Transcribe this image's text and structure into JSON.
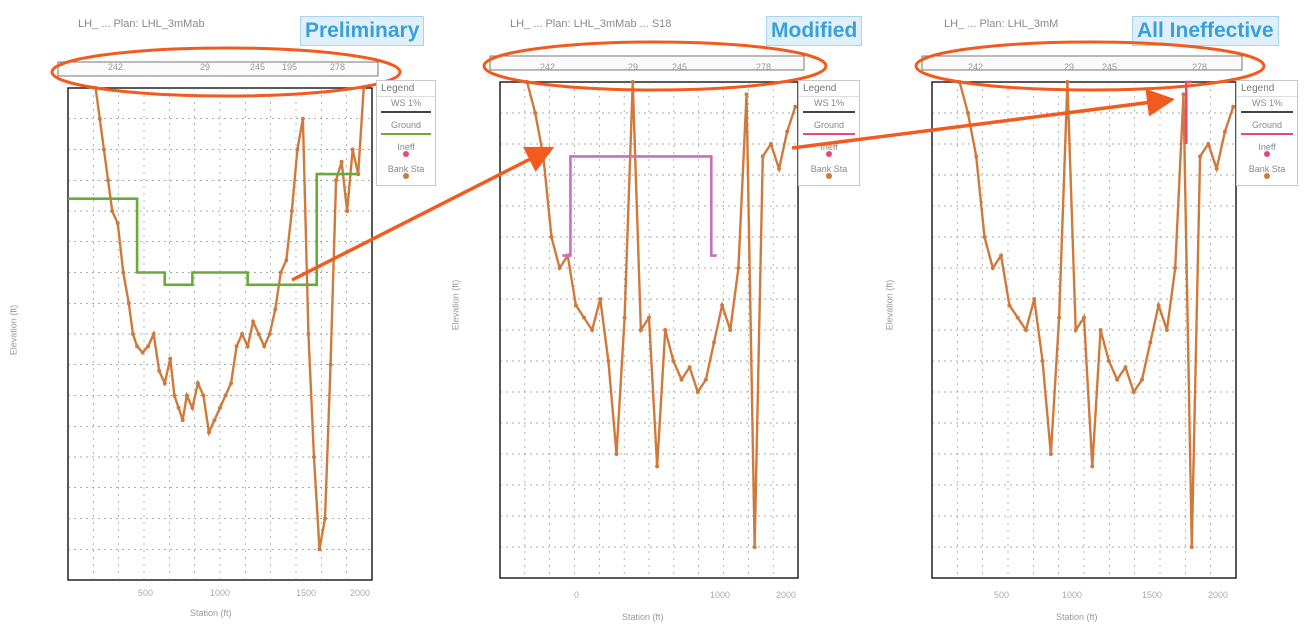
{
  "colors": {
    "ground": "#cf7a3c",
    "ws_prelim": "#6aaa3a",
    "ws_modified": "#c86fc0",
    "ineffective": "#e8467c",
    "annotation": "#f25a1e",
    "tag_text": "#3aa0dc"
  },
  "panels": [
    {
      "tag": "Preliminary",
      "title": "LH_ ...  Plan: LHL_3mMab",
      "reach_labels": [
        "242",
        "29",
        "245",
        "195",
        "278"
      ],
      "legend": {
        "title": "Legend",
        "items": [
          "WS 1%",
          "Ground",
          "Ineff",
          "Bank Sta"
        ]
      },
      "xlabel": "Station (ft)",
      "ylabel": "Elevation (ft)",
      "x_ticks": [
        "500",
        "1000",
        "1500",
        "2000"
      ]
    },
    {
      "tag": "Modified",
      "title": "LH_ ...  Plan: LHL_3mMab ... S18",
      "reach_labels": [
        "242",
        "29",
        "245",
        "278"
      ],
      "legend": {
        "title": "Legend",
        "items": [
          "WS 1%",
          "Ground",
          "Ineff",
          "Bank Sta"
        ]
      },
      "xlabel": "Station (ft)",
      "ylabel": "Elevation (ft)",
      "x_ticks": [
        "0",
        "1000",
        "2000"
      ]
    },
    {
      "tag": "All Ineffective",
      "title": "LH_ ...  Plan: LHL_3mM",
      "reach_labels": [
        "242",
        "29",
        "245",
        "278"
      ],
      "legend": {
        "title": "Legend",
        "items": [
          "WS 1%",
          "Ground",
          "Ineff",
          "Bank Sta"
        ]
      },
      "xlabel": "Station (ft)",
      "ylabel": "Elevation (ft)",
      "x_ticks": [
        "500",
        "1000",
        "1500",
        "2000"
      ]
    }
  ],
  "chart_data": [
    {
      "type": "line",
      "title": "Preliminary",
      "xlabel": "Station (ft)",
      "ylabel": "Elevation (ft)",
      "xlim": [
        0,
        2200
      ],
      "series": [
        {
          "name": "Ground",
          "x": [
            200,
            230,
            260,
            290,
            320,
            360,
            400,
            440,
            470,
            500,
            540,
            580,
            620,
            660,
            700,
            740,
            770,
            800,
            830,
            860,
            900,
            940,
            980,
            1020,
            1060,
            1100,
            1140,
            1180,
            1220,
            1260,
            1300,
            1340,
            1380,
            1420,
            1460,
            1500,
            1540,
            1580,
            1620,
            1660,
            1700,
            1740,
            1780,
            1820,
            1860,
            1900,
            1940,
            1980,
            2020,
            2060,
            2100,
            2140
          ],
          "y": [
            100,
            95,
            90,
            85,
            80,
            78,
            70,
            65,
            60,
            58,
            57,
            58,
            60,
            54,
            52,
            56,
            50,
            48,
            46,
            50,
            48,
            52,
            50,
            44,
            46,
            48,
            50,
            52,
            58,
            60,
            58,
            62,
            60,
            58,
            60,
            64,
            70,
            72,
            80,
            90,
            95,
            60,
            40,
            25,
            30,
            55,
            85,
            88,
            80,
            90,
            86,
            100
          ]
        },
        {
          "name": "WS 1%",
          "x": [
            0,
            500,
            500,
            700,
            700,
            900,
            900,
            1300,
            1300,
            1600,
            1600,
            1800,
            1800,
            2100
          ],
          "y": [
            82,
            82,
            70,
            70,
            68,
            68,
            70,
            70,
            68,
            68,
            68,
            68,
            86,
            86
          ]
        }
      ]
    },
    {
      "type": "line",
      "title": "Modified",
      "xlabel": "Station (ft)",
      "ylabel": "Elevation (ft)",
      "xlim": [
        0,
        2200
      ],
      "series": [
        {
          "name": "Ground",
          "x": [
            200,
            260,
            320,
            380,
            440,
            500,
            560,
            620,
            680,
            740,
            800,
            860,
            920,
            980,
            1040,
            1100,
            1160,
            1220,
            1280,
            1340,
            1400,
            1460,
            1520,
            1580,
            1640,
            1700,
            1760,
            1820,
            1880,
            1940,
            2000,
            2060,
            2120,
            2180
          ],
          "y": [
            100,
            95,
            88,
            75,
            70,
            72,
            64,
            62,
            60,
            65,
            55,
            40,
            62,
            100,
            60,
            62,
            38,
            60,
            55,
            52,
            54,
            50,
            52,
            58,
            64,
            60,
            70,
            98,
            25,
            88,
            90,
            86,
            92,
            96
          ]
        },
        {
          "name": "Ineff",
          "x": [
            460,
            520,
            520,
            1560,
            1560,
            1600
          ],
          "y": [
            72,
            72,
            88,
            88,
            72,
            72
          ]
        }
      ]
    },
    {
      "type": "line",
      "title": "All Ineffective",
      "xlabel": "Station (ft)",
      "ylabel": "Elevation (ft)",
      "xlim": [
        0,
        2200
      ],
      "series": [
        {
          "name": "Ground",
          "x": [
            200,
            260,
            320,
            380,
            440,
            500,
            560,
            620,
            680,
            740,
            800,
            860,
            920,
            980,
            1040,
            1100,
            1160,
            1220,
            1280,
            1340,
            1400,
            1460,
            1520,
            1580,
            1640,
            1700,
            1760,
            1820,
            1880,
            1940,
            2000,
            2060,
            2120,
            2180
          ],
          "y": [
            100,
            95,
            88,
            75,
            70,
            72,
            64,
            62,
            60,
            65,
            55,
            40,
            62,
            100,
            60,
            62,
            38,
            60,
            55,
            52,
            54,
            50,
            52,
            58,
            64,
            60,
            70,
            98,
            25,
            88,
            90,
            86,
            92,
            96
          ]
        },
        {
          "name": "Ineff",
          "x": [
            1840,
            1840,
            1880
          ],
          "y": [
            90,
            100,
            100
          ]
        }
      ]
    }
  ]
}
